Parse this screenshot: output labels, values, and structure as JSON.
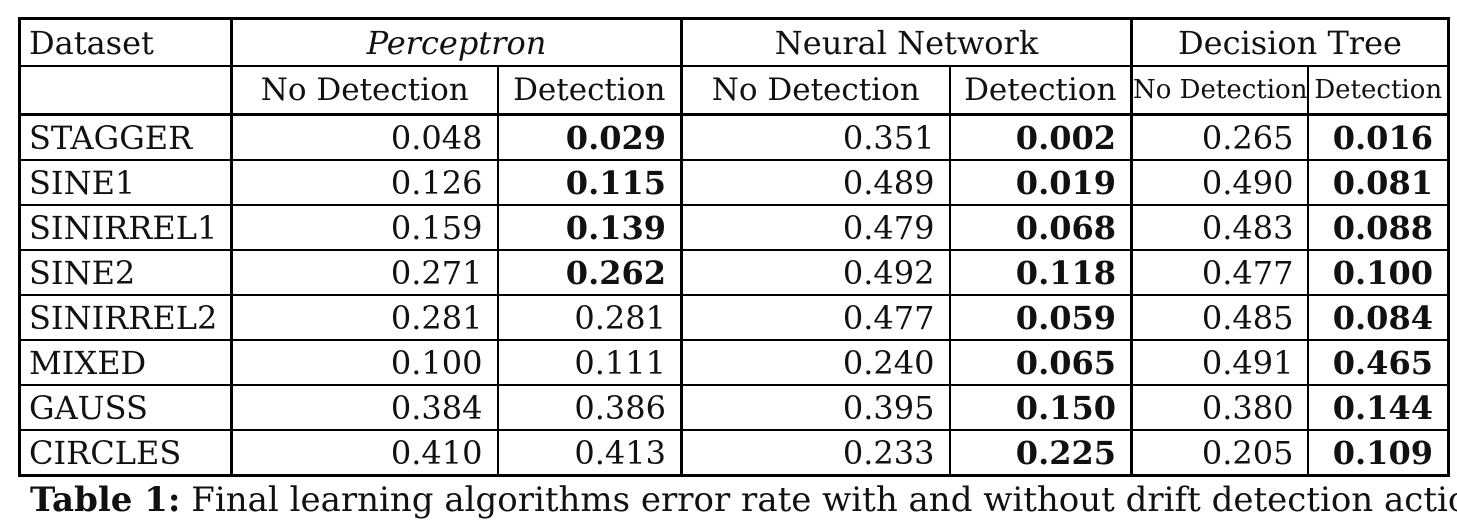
{
  "colors": {
    "background": "#ffffff",
    "text": "#111111",
    "border": "#000000"
  },
  "table": {
    "corner_header": "Dataset",
    "groups": [
      {
        "label": "Perceptron"
      },
      {
        "label": "Neural Network"
      },
      {
        "label": "Decision Tree"
      }
    ],
    "sub_columns": [
      "No Detection",
      "Detection"
    ],
    "rows": [
      {
        "dataset": "STAGGER",
        "values": [
          {
            "text": "0.048",
            "bold": false
          },
          {
            "text": "0.029",
            "bold": true
          },
          {
            "text": "0.351",
            "bold": false
          },
          {
            "text": "0.002",
            "bold": true
          },
          {
            "text": "0.265",
            "bold": false
          },
          {
            "text": "0.016",
            "bold": true
          }
        ]
      },
      {
        "dataset": "SINE1",
        "values": [
          {
            "text": "0.126",
            "bold": false
          },
          {
            "text": "0.115",
            "bold": true
          },
          {
            "text": "0.489",
            "bold": false
          },
          {
            "text": "0.019",
            "bold": true
          },
          {
            "text": "0.490",
            "bold": false
          },
          {
            "text": "0.081",
            "bold": true
          }
        ]
      },
      {
        "dataset": "SINIRREL1",
        "values": [
          {
            "text": "0.159",
            "bold": false
          },
          {
            "text": "0.139",
            "bold": true
          },
          {
            "text": "0.479",
            "bold": false
          },
          {
            "text": "0.068",
            "bold": true
          },
          {
            "text": "0.483",
            "bold": false
          },
          {
            "text": "0.088",
            "bold": true
          }
        ]
      },
      {
        "dataset": "SINE2",
        "values": [
          {
            "text": "0.271",
            "bold": false
          },
          {
            "text": "0.262",
            "bold": true
          },
          {
            "text": "0.492",
            "bold": false
          },
          {
            "text": "0.118",
            "bold": true
          },
          {
            "text": "0.477",
            "bold": false
          },
          {
            "text": "0.100",
            "bold": true
          }
        ]
      },
      {
        "dataset": "SINIRREL2",
        "values": [
          {
            "text": "0.281",
            "bold": false
          },
          {
            "text": "0.281",
            "bold": false
          },
          {
            "text": "0.477",
            "bold": false
          },
          {
            "text": "0.059",
            "bold": true
          },
          {
            "text": "0.485",
            "bold": false
          },
          {
            "text": "0.084",
            "bold": true
          }
        ]
      },
      {
        "dataset": "MIXED",
        "values": [
          {
            "text": "0.100",
            "bold": false
          },
          {
            "text": "0.111",
            "bold": false
          },
          {
            "text": "0.240",
            "bold": false
          },
          {
            "text": "0.065",
            "bold": true
          },
          {
            "text": "0.491",
            "bold": false
          },
          {
            "text": "0.465",
            "bold": true
          }
        ]
      },
      {
        "dataset": "GAUSS",
        "values": [
          {
            "text": "0.384",
            "bold": false
          },
          {
            "text": "0.386",
            "bold": false
          },
          {
            "text": "0.395",
            "bold": false
          },
          {
            "text": "0.150",
            "bold": true
          },
          {
            "text": "0.380",
            "bold": false
          },
          {
            "text": "0.144",
            "bold": true
          }
        ]
      },
      {
        "dataset": "CIRCLES",
        "values": [
          {
            "text": "0.410",
            "bold": false
          },
          {
            "text": "0.413",
            "bold": false
          },
          {
            "text": "0.233",
            "bold": false
          },
          {
            "text": "0.225",
            "bold": true
          },
          {
            "text": "0.205",
            "bold": false
          },
          {
            "text": "0.109",
            "bold": true
          }
        ]
      }
    ]
  },
  "caption": {
    "label": "Table 1:",
    "text": "Final learning algorithms error rate with and without drift detection action"
  }
}
